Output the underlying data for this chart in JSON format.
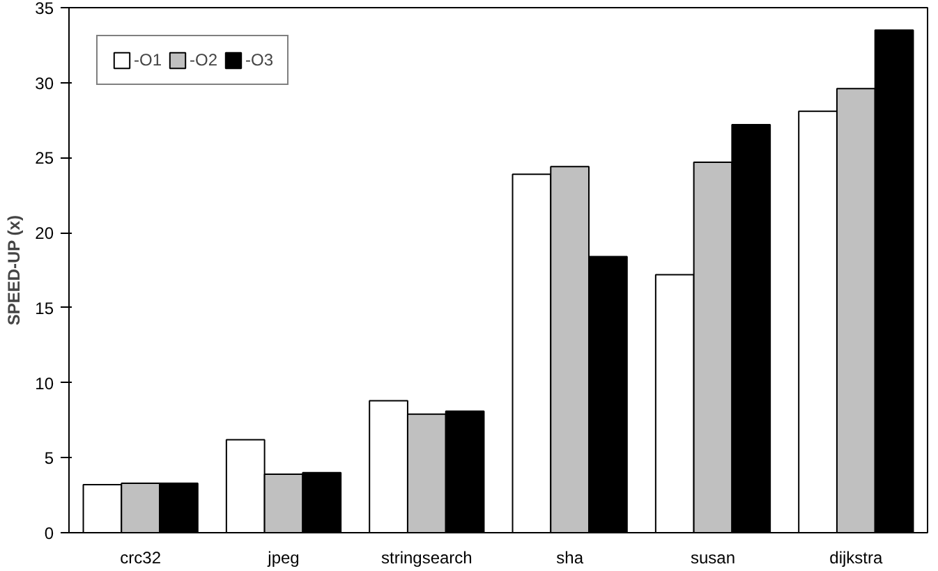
{
  "chart_data": {
    "type": "bar",
    "ylabel": "SPEED-UP (x)",
    "categories": [
      "crc32",
      "jpeg",
      "stringsearch",
      "sha",
      "susan",
      "dijkstra"
    ],
    "series": [
      {
        "name": "-O1",
        "color": "#ffffff",
        "values": [
          3.2,
          6.2,
          8.8,
          23.9,
          17.2,
          28.1
        ]
      },
      {
        "name": "-O2",
        "color": "#c0c0c0",
        "values": [
          3.3,
          3.9,
          7.9,
          24.4,
          24.7,
          29.6
        ]
      },
      {
        "name": "-O3",
        "color": "#000000",
        "values": [
          3.3,
          4.0,
          8.1,
          18.4,
          27.2,
          33.5
        ]
      }
    ],
    "ylim": [
      0,
      35
    ],
    "yticks": [
      0,
      5,
      10,
      15,
      20,
      25,
      30,
      35
    ],
    "grid": false,
    "legend": "top left"
  }
}
